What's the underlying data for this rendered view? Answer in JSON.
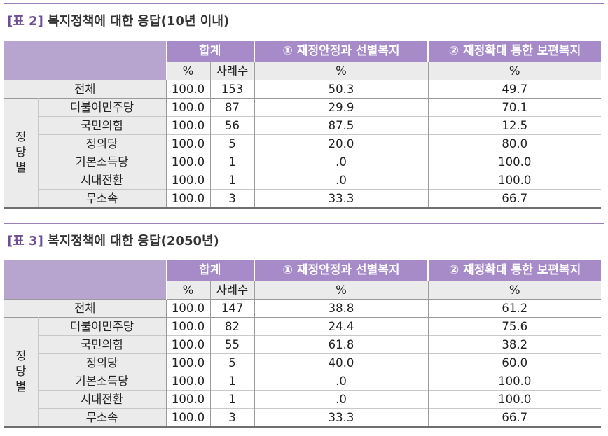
{
  "tables": [
    {
      "tag": "[표 2]",
      "title": "복지정책에 대한 응답(10년 이내)",
      "header": {
        "total": "합계",
        "opt1": "① 재정안정과 선별복지",
        "opt2": "② 재정확대 통한 보편복지"
      },
      "subheader": {
        "pct": "%",
        "cases": "사례수",
        "opt1_pct": "%",
        "opt2_pct": "%"
      },
      "total_row": {
        "label": "전체",
        "pct": "100.0",
        "cases": "153",
        "opt1": "50.3",
        "opt2": "49.7"
      },
      "group_label": "정당별",
      "rows": [
        {
          "label": "더불어민주당",
          "pct": "100.0",
          "cases": "87",
          "opt1": "29.9",
          "opt2": "70.1"
        },
        {
          "label": "국민의힘",
          "pct": "100.0",
          "cases": "56",
          "opt1": "87.5",
          "opt2": "12.5"
        },
        {
          "label": "정의당",
          "pct": "100.0",
          "cases": "5",
          "opt1": "20.0",
          "opt2": "80.0"
        },
        {
          "label": "기본소득당",
          "pct": "100.0",
          "cases": "1",
          "opt1": ".0",
          "opt2": "100.0"
        },
        {
          "label": "시대전환",
          "pct": "100.0",
          "cases": "1",
          "opt1": ".0",
          "opt2": "100.0"
        },
        {
          "label": "무소속",
          "pct": "100.0",
          "cases": "3",
          "opt1": "33.3",
          "opt2": "66.7"
        }
      ]
    },
    {
      "tag": "[표 3]",
      "title": "복지정책에 대한 응답(2050년)",
      "header": {
        "total": "합계",
        "opt1": "① 재정안정과 선별복지",
        "opt2": "② 재정확대 통한 보편복지"
      },
      "subheader": {
        "pct": "%",
        "cases": "사례수",
        "opt1_pct": "%",
        "opt2_pct": "%"
      },
      "total_row": {
        "label": "전체",
        "pct": "100.0",
        "cases": "147",
        "opt1": "38.8",
        "opt2": "61.2"
      },
      "group_label": "정당별",
      "rows": [
        {
          "label": "더불어민주당",
          "pct": "100.0",
          "cases": "82",
          "opt1": "24.4",
          "opt2": "75.6"
        },
        {
          "label": "국민의힘",
          "pct": "100.0",
          "cases": "55",
          "opt1": "61.8",
          "opt2": "38.2"
        },
        {
          "label": "정의당",
          "pct": "100.0",
          "cases": "5",
          "opt1": "40.0",
          "opt2": "60.0"
        },
        {
          "label": "기본소득당",
          "pct": "100.0",
          "cases": "1",
          "opt1": ".0",
          "opt2": "100.0"
        },
        {
          "label": "시대전환",
          "pct": "100.0",
          "cases": "1",
          "opt1": ".0",
          "opt2": "100.0"
        },
        {
          "label": "무소속",
          "pct": "100.0",
          "cases": "3",
          "opt1": "33.3",
          "opt2": "66.7"
        }
      ]
    }
  ]
}
